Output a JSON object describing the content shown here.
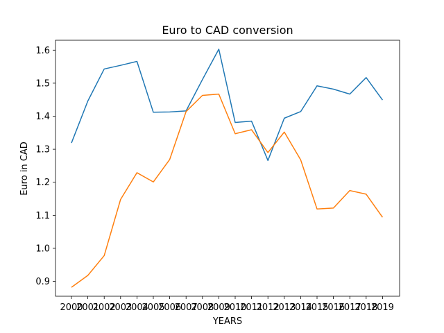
{
  "chart_data": {
    "type": "line",
    "title": "Euro to CAD conversion",
    "xlabel": "YEARS",
    "ylabel": "Euro in CAD",
    "x": [
      "2000",
      "2001",
      "2002",
      "2003",
      "2004",
      "2005",
      "2006",
      "2007",
      "2008",
      "2009",
      "2010",
      "2011",
      "2012",
      "2013",
      "2014",
      "2015",
      "2016",
      "2017",
      "2018",
      "2019"
    ],
    "ylim": [
      0.855,
      1.63
    ],
    "yticks": [
      0.9,
      1.0,
      1.1,
      1.2,
      1.3,
      1.4,
      1.5,
      1.6
    ],
    "ytick_labels": [
      "0.9",
      "1.0",
      "1.1",
      "1.2",
      "1.3",
      "1.4",
      "1.5",
      "1.6"
    ],
    "grid": false,
    "series": [
      {
        "color": "#1f77b4",
        "values": [
          1.319,
          1.446,
          1.543,
          1.554,
          1.566,
          1.412,
          1.413,
          1.416,
          1.511,
          1.603,
          1.381,
          1.385,
          1.266,
          1.394,
          1.414,
          1.492,
          1.482,
          1.467,
          1.517,
          1.449
        ]
      },
      {
        "color": "#ff7f0e",
        "values": [
          0.882,
          0.918,
          0.978,
          1.148,
          1.229,
          1.201,
          1.269,
          1.414,
          1.463,
          1.467,
          1.347,
          1.359,
          1.29,
          1.352,
          1.268,
          1.119,
          1.122,
          1.175,
          1.164,
          1.094
        ]
      }
    ]
  }
}
